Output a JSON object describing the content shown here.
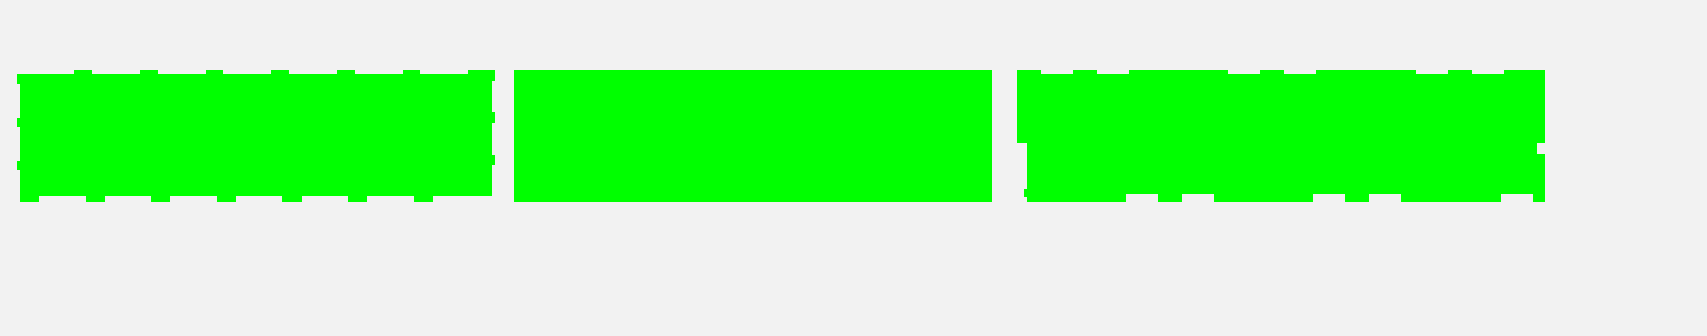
{
  "background_color": "#f2f2f2",
  "fill_color": "#00ff00",
  "shapes": [
    {
      "name": "serrated-bar-left",
      "style": "notched-edges"
    },
    {
      "name": "solid-bar-center",
      "style": "solid"
    },
    {
      "name": "stepped-bar-right",
      "style": "stepped-edges"
    }
  ]
}
